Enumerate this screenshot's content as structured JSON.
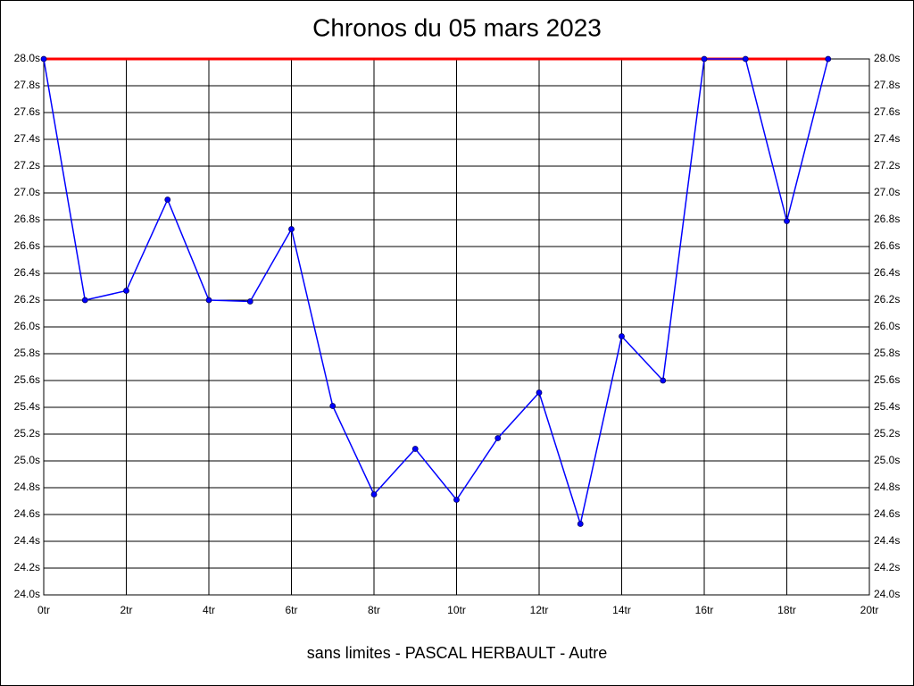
{
  "chart_data": {
    "type": "line",
    "title": "Chronos du 05 mars 2023",
    "xlabel": "sans limites - PASCAL HERBAULT - Autre",
    "x": [
      0,
      1,
      2,
      3,
      4,
      5,
      6,
      7,
      8,
      9,
      10,
      11,
      12,
      13,
      14,
      15,
      16,
      17,
      18,
      19
    ],
    "series": [
      {
        "color": "#0000ff",
        "values": [
          28.0,
          26.2,
          26.27,
          26.95,
          26.2,
          26.19,
          26.73,
          25.41,
          24.75,
          25.09,
          24.71,
          25.17,
          25.51,
          24.53,
          25.93,
          25.6,
          28.0,
          28.0,
          26.79,
          28.0
        ]
      }
    ],
    "reference_line": {
      "y": 28.0,
      "x": [
        0,
        19
      ],
      "color": "#ff0000"
    },
    "xlim": [
      0,
      20
    ],
    "ylim": [
      24.0,
      28.0
    ],
    "xticks": [
      {
        "value": 0,
        "label": "0tr"
      },
      {
        "value": 2,
        "label": "2tr"
      },
      {
        "value": 4,
        "label": "4tr"
      },
      {
        "value": 6,
        "label": "6tr"
      },
      {
        "value": 8,
        "label": "8tr"
      },
      {
        "value": 10,
        "label": "10tr"
      },
      {
        "value": 12,
        "label": "12tr"
      },
      {
        "value": 14,
        "label": "14tr"
      },
      {
        "value": 16,
        "label": "16tr"
      },
      {
        "value": 18,
        "label": "18tr"
      },
      {
        "value": 20,
        "label": "20tr"
      }
    ],
    "yticks": [
      {
        "value": 24.0,
        "label": "24.0s"
      },
      {
        "value": 24.2,
        "label": "24.2s"
      },
      {
        "value": 24.4,
        "label": "24.4s"
      },
      {
        "value": 24.6,
        "label": "24.6s"
      },
      {
        "value": 24.8,
        "label": "24.8s"
      },
      {
        "value": 25.0,
        "label": "25.0s"
      },
      {
        "value": 25.2,
        "label": "25.2s"
      },
      {
        "value": 25.4,
        "label": "25.4s"
      },
      {
        "value": 25.6,
        "label": "25.6s"
      },
      {
        "value": 25.8,
        "label": "25.8s"
      },
      {
        "value": 26.0,
        "label": "26.0s"
      },
      {
        "value": 26.2,
        "label": "26.2s"
      },
      {
        "value": 26.4,
        "label": "26.4s"
      },
      {
        "value": 26.6,
        "label": "26.6s"
      },
      {
        "value": 26.8,
        "label": "26.8s"
      },
      {
        "value": 27.0,
        "label": "27.0s"
      },
      {
        "value": 27.2,
        "label": "27.2s"
      },
      {
        "value": 27.4,
        "label": "27.4s"
      },
      {
        "value": 27.6,
        "label": "27.6s"
      },
      {
        "value": 27.8,
        "label": "27.8s"
      },
      {
        "value": 28.0,
        "label": "28.0s"
      }
    ],
    "grid": true,
    "right_axis_labels": true
  }
}
